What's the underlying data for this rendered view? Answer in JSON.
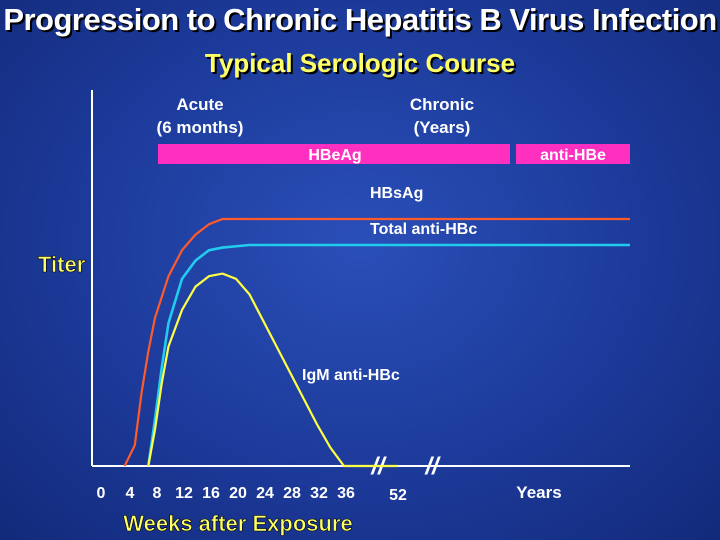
{
  "chart_data": {
    "type": "line",
    "title": "Progression to Chronic Hepatitis B Virus Infection",
    "subtitle": "Typical Serologic Course",
    "ylabel": "Titer",
    "xlabel": "Weeks after Exposure",
    "x_ticks": [
      "0",
      "4",
      "8",
      "12",
      "16",
      "20",
      "24",
      "28",
      "32",
      "36",
      "52",
      "Years"
    ],
    "phases": [
      {
        "name": "acute",
        "line1": "Acute",
        "line2": "(6 months)"
      },
      {
        "name": "chronic",
        "line1": "Chronic",
        "line2": "(Years)"
      }
    ],
    "bars": [
      {
        "label": "HBeAg",
        "color": "#ff2fbf",
        "from_week": 8,
        "to_week": "chronic"
      },
      {
        "label": "anti-HBe",
        "color": "#ff2fbf",
        "from_week": "late chronic",
        "to_week": "Years"
      }
    ],
    "series": [
      {
        "name": "HBsAg",
        "color": "#ff5a2a",
        "points": [
          [
            3.5,
            0
          ],
          [
            5,
            8
          ],
          [
            6,
            28
          ],
          [
            7,
            44
          ],
          [
            8,
            57
          ],
          [
            10,
            73
          ],
          [
            12,
            83
          ],
          [
            14,
            89
          ],
          [
            16,
            93
          ],
          [
            18,
            95
          ],
          [
            22,
            95
          ],
          [
            36,
            95
          ],
          [
            52,
            95
          ],
          [
            80,
            95
          ]
        ]
      },
      {
        "name": "Total anti-HBc",
        "color": "#22ccee",
        "points": [
          [
            7,
            0
          ],
          [
            8,
            18
          ],
          [
            9,
            38
          ],
          [
            10,
            55
          ],
          [
            12,
            72
          ],
          [
            14,
            79
          ],
          [
            16,
            83
          ],
          [
            18,
            84
          ],
          [
            22,
            85
          ],
          [
            36,
            85
          ],
          [
            52,
            85
          ],
          [
            80,
            85
          ]
        ]
      },
      {
        "name": "IgM anti-HBc",
        "color": "#ffff44",
        "points": [
          [
            7,
            0
          ],
          [
            8,
            14
          ],
          [
            9,
            32
          ],
          [
            10,
            46
          ],
          [
            12,
            60
          ],
          [
            14,
            69
          ],
          [
            16,
            73
          ],
          [
            18,
            74
          ],
          [
            20,
            72
          ],
          [
            22,
            66
          ],
          [
            24,
            56
          ],
          [
            26,
            46
          ],
          [
            28,
            36
          ],
          [
            30,
            26
          ],
          [
            32,
            16
          ],
          [
            34,
            7
          ],
          [
            36,
            0
          ],
          [
            52,
            0
          ]
        ]
      }
    ],
    "axis_break_symbol": "//"
  }
}
